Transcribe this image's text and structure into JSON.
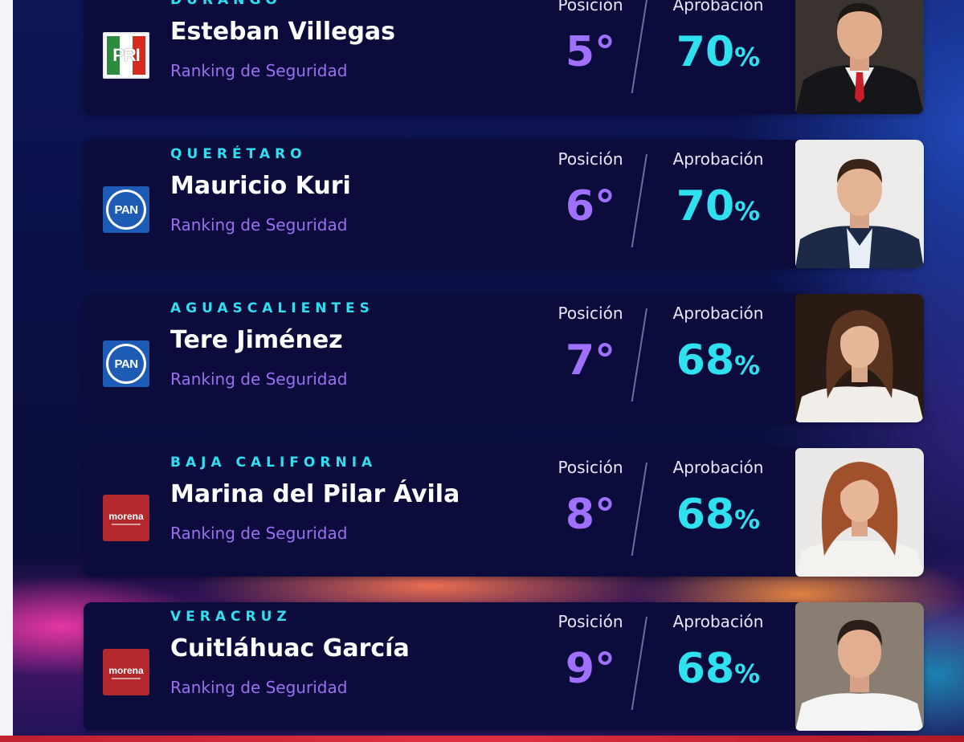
{
  "labels": {
    "position": "Posición",
    "approval": "Aprobación",
    "subtitle": "Ranking de Seguridad"
  },
  "colors": {
    "state_text": "#2fe0f0",
    "position_value": "#a070ff",
    "approval_value": "#2fe0f0",
    "subtitle": "#9b6ff0",
    "card_bg": "#0c0c3c"
  },
  "cards": [
    {
      "state": "DURANGO",
      "name": "Esteban Villegas",
      "party_logo": "PRI",
      "logo_icon": "pri-logo-icon",
      "position": "5°",
      "approval": "70",
      "approval_unit": "%",
      "photo": "portrait-man-red-tie"
    },
    {
      "state": "QUERÉTARO",
      "name": "Mauricio Kuri",
      "party_logo": "PAN",
      "logo_icon": "pan-logo-icon",
      "position": "6°",
      "approval": "70",
      "approval_unit": "%",
      "photo": "portrait-man-open-collar"
    },
    {
      "state": "AGUASCALIENTES",
      "name": "Tere Jiménez",
      "party_logo": "PAN",
      "logo_icon": "pan-logo-icon",
      "position": "7°",
      "approval": "68",
      "approval_unit": "%",
      "photo": "portrait-woman-brown-hair"
    },
    {
      "state": "BAJA CALIFORNIA",
      "name": "Marina del Pilar Ávila",
      "party_logo": "morena",
      "logo_icon": "morena-logo-icon",
      "position": "8°",
      "approval": "68",
      "approval_unit": "%",
      "photo": "portrait-woman-auburn-hair"
    },
    {
      "state": "VERACRUZ",
      "name": "Cuitláhuac García",
      "party_logo": "morena",
      "logo_icon": "morena-logo-icon",
      "position": "9°",
      "approval": "68",
      "approval_unit": "%",
      "photo": "portrait-man-white-shirt"
    }
  ]
}
